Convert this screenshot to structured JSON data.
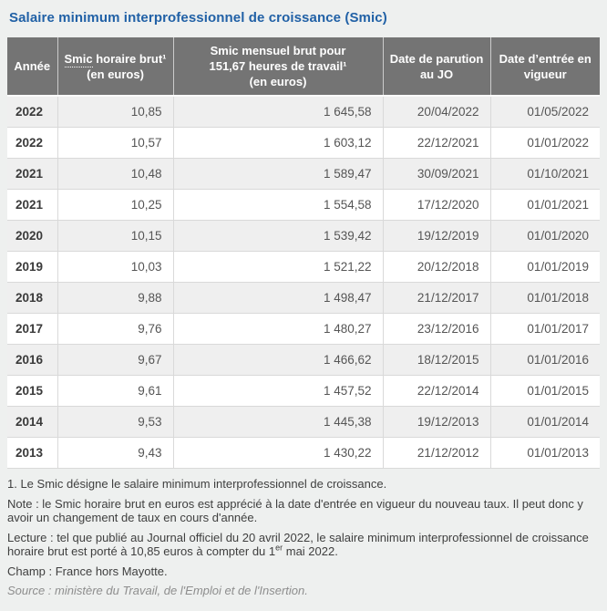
{
  "page": {
    "title": "Salaire minimum interprofessionnel de croissance (Smic)"
  },
  "colors": {
    "title_blue": "#2161a6",
    "header_gray": "#747474",
    "row_alt_gray": "#efefef",
    "page_background": "#eef0ef"
  },
  "table": {
    "header": {
      "annee": "Année",
      "horaire_term": "Smic",
      "horaire_rest": " horaire brut¹",
      "horaire_sub": "(en euros)",
      "mensuel_line1": "Smic mensuel brut pour",
      "mensuel_line2": "151,67 heures de travail¹",
      "mensuel_sub": "(en euros)",
      "parution": "Date de parution au JO",
      "vigueur": "Date d’entrée en vigueur"
    },
    "rows": [
      {
        "annee": "2022",
        "horaire": "10,85",
        "mensuel": "1 645,58",
        "parution": "20/04/2022",
        "vigueur": "01/05/2022"
      },
      {
        "annee": "2022",
        "horaire": "10,57",
        "mensuel": "1 603,12",
        "parution": "22/12/2021",
        "vigueur": "01/01/2022"
      },
      {
        "annee": "2021",
        "horaire": "10,48",
        "mensuel": "1 589,47",
        "parution": "30/09/2021",
        "vigueur": "01/10/2021"
      },
      {
        "annee": "2021",
        "horaire": "10,25",
        "mensuel": "1 554,58",
        "parution": "17/12/2020",
        "vigueur": "01/01/2021"
      },
      {
        "annee": "2020",
        "horaire": "10,15",
        "mensuel": "1 539,42",
        "parution": "19/12/2019",
        "vigueur": "01/01/2020"
      },
      {
        "annee": "2019",
        "horaire": "10,03",
        "mensuel": "1 521,22",
        "parution": "20/12/2018",
        "vigueur": "01/01/2019"
      },
      {
        "annee": "2018",
        "horaire": "9,88",
        "mensuel": "1 498,47",
        "parution": "21/12/2017",
        "vigueur": "01/01/2018"
      },
      {
        "annee": "2017",
        "horaire": "9,76",
        "mensuel": "1 480,27",
        "parution": "23/12/2016",
        "vigueur": "01/01/2017"
      },
      {
        "annee": "2016",
        "horaire": "9,67",
        "mensuel": "1 466,62",
        "parution": "18/12/2015",
        "vigueur": "01/01/2016"
      },
      {
        "annee": "2015",
        "horaire": "9,61",
        "mensuel": "1 457,52",
        "parution": "22/12/2014",
        "vigueur": "01/01/2015"
      },
      {
        "annee": "2014",
        "horaire": "9,53",
        "mensuel": "1 445,38",
        "parution": "19/12/2013",
        "vigueur": "01/01/2014"
      },
      {
        "annee": "2013",
        "horaire": "9,43",
        "mensuel": "1 430,22",
        "parution": "21/12/2012",
        "vigueur": "01/01/2013"
      }
    ]
  },
  "notes": {
    "footnote1": "1. Le Smic désigne le salaire minimum interprofessionnel de croissance.",
    "note": "Note : le Smic horaire brut en euros est apprécié à la date d'entrée en vigueur du nouveau taux. Il peut donc y avoir un changement de taux en cours d'année.",
    "lecture_pre": "Lecture : tel que publié au Journal officiel du 20 avril 2022, le salaire minimum interprofessionnel de croissance horaire brut est porté à 10,85 euros à compter du 1",
    "lecture_sup": "er",
    "lecture_post": " mai 2022.",
    "champ": "Champ : France hors Mayotte.",
    "source": "Source : ministère du Travail, de l'Emploi et de l'Insertion."
  }
}
